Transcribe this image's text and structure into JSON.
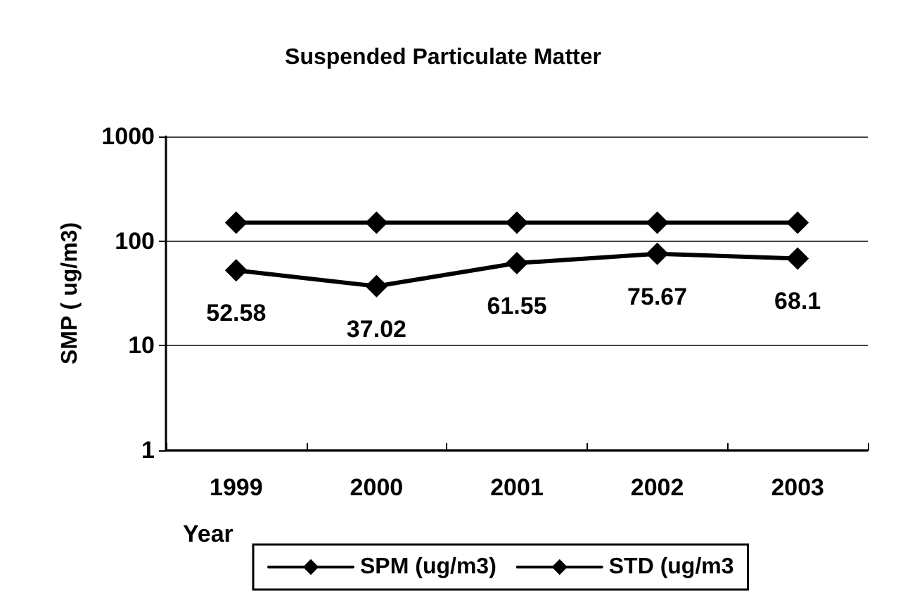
{
  "chart_data": {
    "type": "line",
    "title": "Suspended Particulate Matter",
    "xlabel": "Year",
    "ylabel": "SMP ( ug/m3)",
    "categories": [
      "1999",
      "2000",
      "2001",
      "2002",
      "2003"
    ],
    "series": [
      {
        "name": "SPM (ug/m3)",
        "color": "#000000",
        "values": [
          52.58,
          37.02,
          61.55,
          75.67,
          68.1
        ],
        "value_labels": [
          "52.58",
          "37.02",
          "61.55",
          "75.67",
          "68.1"
        ]
      },
      {
        "name": "STD (ug/m3",
        "color": "#000000",
        "values": [
          150,
          150,
          150,
          150,
          150
        ]
      }
    ],
    "log": true,
    "ylim": [
      1,
      1000
    ],
    "yticks": [
      1,
      10,
      100,
      1000
    ],
    "grid": "y",
    "legend": "bottom",
    "marker": "diamond",
    "line_style": "solid"
  }
}
